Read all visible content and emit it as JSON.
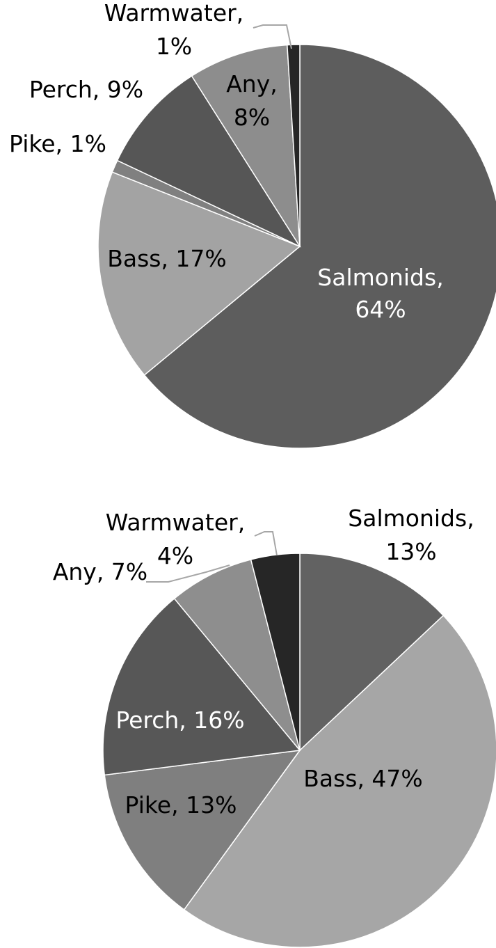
{
  "chart_data": [
    {
      "type": "pie",
      "title": "",
      "start_angle_deg": 0,
      "direction": "clockwise",
      "slices": [
        {
          "label": "Salmonids",
          "value": 64,
          "display": [
            "Salmonids,",
            "64%"
          ],
          "color": "#5d5d5d",
          "label_color": "#ffffff"
        },
        {
          "label": "Bass",
          "value": 17,
          "display": [
            "Bass, 17%"
          ],
          "color": "#a3a3a3",
          "label_color": "#000000"
        },
        {
          "label": "Pike",
          "value": 1,
          "display": [
            "Pike, 1%"
          ],
          "color": "#808080",
          "label_color": "#000000"
        },
        {
          "label": "Perch",
          "value": 9,
          "display": [
            "Perch, 9%"
          ],
          "color": "#565656",
          "label_color": "#000000"
        },
        {
          "label": "Any",
          "value": 8,
          "display": [
            "Any,",
            "8%"
          ],
          "color": "#8d8d8d",
          "label_color": "#000000"
        },
        {
          "label": "Warmwater",
          "value": 1,
          "display": [
            "Warmwater,",
            "1%"
          ],
          "color": "#262626",
          "label_color": "#000000"
        }
      ]
    },
    {
      "type": "pie",
      "title": "",
      "start_angle_deg": 0,
      "direction": "clockwise",
      "slices": [
        {
          "label": "Salmonids",
          "value": 13,
          "display": [
            "Salmonids,",
            "13%"
          ],
          "color": "#626262",
          "label_color": "#000000"
        },
        {
          "label": "Bass",
          "value": 47,
          "display": [
            "Bass, 47%"
          ],
          "color": "#a6a6a6",
          "label_color": "#000000"
        },
        {
          "label": "Pike",
          "value": 13,
          "display": [
            "Pike, 13%"
          ],
          "color": "#7f7f7f",
          "label_color": "#000000"
        },
        {
          "label": "Perch",
          "value": 16,
          "display": [
            "Perch, 16%"
          ],
          "color": "#575757",
          "label_color": "#ffffff"
        },
        {
          "label": "Any",
          "value": 7,
          "display": [
            "Any, 7%"
          ],
          "color": "#8e8e8e",
          "label_color": "#000000"
        },
        {
          "label": "Warmwater",
          "value": 4,
          "display": [
            "Warmwater,",
            "4%"
          ],
          "color": "#262626",
          "label_color": "#000000"
        }
      ]
    }
  ]
}
